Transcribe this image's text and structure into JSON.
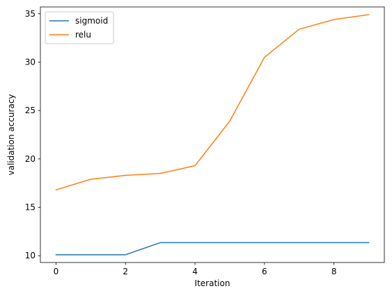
{
  "chart_data": {
    "type": "line",
    "title": "",
    "xlabel": "Iteration",
    "ylabel": "validation accuracy",
    "x": [
      0,
      1,
      2,
      3,
      4,
      5,
      6,
      7,
      8,
      9
    ],
    "xlim": [
      -0.45,
      9.45
    ],
    "ylim": [
      9.3,
      35.7
    ],
    "xticks": [
      0,
      2,
      4,
      6,
      8
    ],
    "yticks": [
      10,
      15,
      20,
      25,
      30,
      35
    ],
    "grid": false,
    "legend": "upper-left",
    "series": [
      {
        "name": "sigmoid",
        "color": "#1f77b4",
        "values": [
          10.1,
          10.1,
          10.1,
          11.35,
          11.35,
          11.35,
          11.35,
          11.35,
          11.35,
          11.35
        ]
      },
      {
        "name": "relu",
        "color": "#ff7f0e",
        "values": [
          16.8,
          17.9,
          18.3,
          18.5,
          19.3,
          23.9,
          30.5,
          33.4,
          34.4,
          34.9
        ]
      }
    ]
  }
}
